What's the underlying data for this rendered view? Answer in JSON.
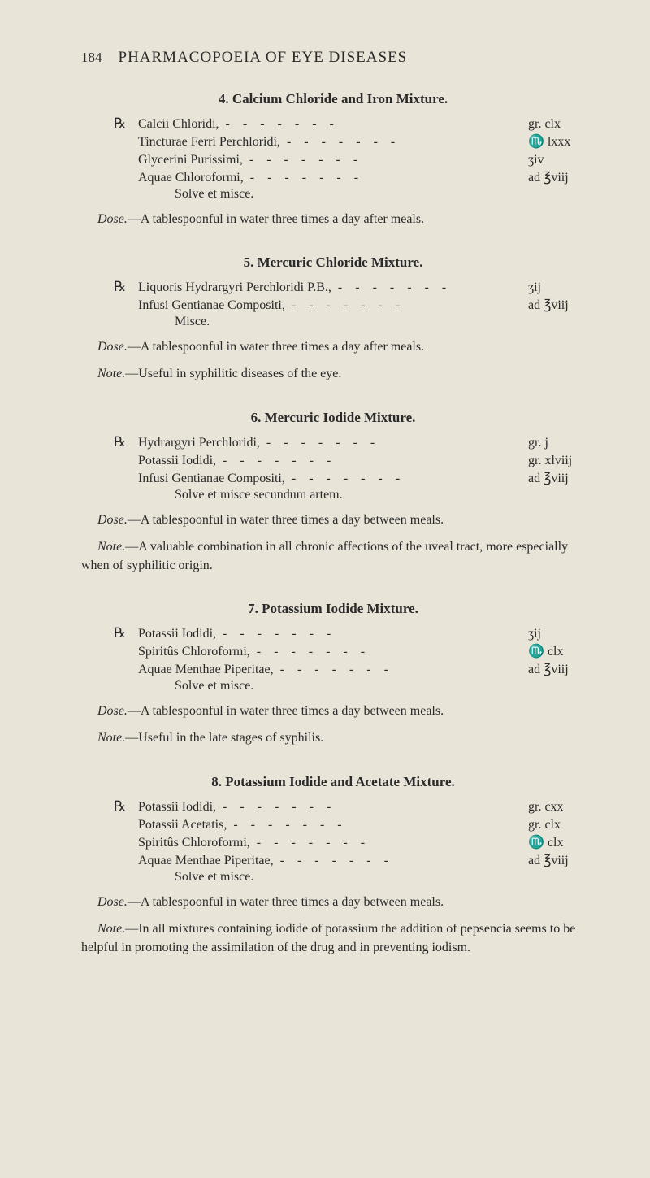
{
  "background_color": "#e8e4d8",
  "text_color": "#2a2a2a",
  "header": {
    "page_number": "184",
    "title": "PHARMACOPOEIA OF EYE DISEASES"
  },
  "sections": [
    {
      "title": "4.  Calcium Chloride and Iron Mixture.",
      "rx": "℞",
      "formulas": [
        {
          "ingredient": "Calcii Chloridi,",
          "amount": "gr. clx"
        },
        {
          "ingredient": "Tincturae Ferri Perchloridi,",
          "amount": "♏ lxxx"
        },
        {
          "ingredient": "Glycerini Purissimi,",
          "amount": "ʒiv"
        },
        {
          "ingredient": "Aquae Chloroformi,",
          "amount": "ad ℥viij"
        }
      ],
      "instruction": "Solve et misce.",
      "notes": [
        {
          "label": "Dose.",
          "text": "—A tablespoonful in water three times a day after meals."
        }
      ]
    },
    {
      "title": "5.   Mercuric Chloride Mixture.",
      "rx": "℞",
      "formulas": [
        {
          "ingredient": "Liquoris Hydrargyri Perchloridi P.B.,",
          "amount": "ʒij"
        },
        {
          "ingredient": "Infusi Gentianae Compositi,",
          "amount": "ad ℥viij"
        }
      ],
      "instruction": "Misce.",
      "notes": [
        {
          "label": "Dose.",
          "text": "—A tablespoonful in water three times a day after meals."
        },
        {
          "label": "Note.",
          "text": "—Useful in syphilitic diseases of the eye."
        }
      ]
    },
    {
      "title": "6.   Mercuric Iodide Mixture.",
      "rx": "℞",
      "formulas": [
        {
          "ingredient": "Hydrargyri Perchloridi,",
          "amount": "gr. j"
        },
        {
          "ingredient": "Potassii Iodidi,",
          "amount": "gr. xlviij"
        },
        {
          "ingredient": "Infusi Gentianae Compositi,",
          "amount": "ad ℥viij"
        }
      ],
      "instruction": "Solve et misce secundum artem.",
      "notes": [
        {
          "label": "Dose.",
          "text": "—A tablespoonful in water three times a day between meals."
        },
        {
          "label": "Note.",
          "text": "—A valuable combination in all chronic affections of the uveal tract, more especially when of syphilitic origin."
        }
      ]
    },
    {
      "title": "7.   Potassium Iodide Mixture.",
      "rx": "℞",
      "formulas": [
        {
          "ingredient": "Potassii Iodidi,",
          "amount": "ʒij"
        },
        {
          "ingredient": "Spiritûs Chloroformi,",
          "amount": "♏ clx"
        },
        {
          "ingredient": "Aquae Menthae Piperitae,",
          "amount": "ad ℥viij"
        }
      ],
      "instruction": "Solve et misce.",
      "notes": [
        {
          "label": "Dose.",
          "text": "—A tablespoonful in water three times a day between meals."
        },
        {
          "label": "Note.",
          "text": "—Useful in the late stages of syphilis."
        }
      ]
    },
    {
      "title": "8.   Potassium Iodide and Acetate Mixture.",
      "rx": "℞",
      "formulas": [
        {
          "ingredient": "Potassii Iodidi,",
          "amount": "gr. cxx"
        },
        {
          "ingredient": "Potassii Acetatis,",
          "amount": "gr. clx"
        },
        {
          "ingredient": "Spiritûs Chloroformi,",
          "amount": "♏ clx"
        },
        {
          "ingredient": "Aquae Menthae Piperitae,",
          "amount": "ad ℥viij"
        }
      ],
      "instruction": "Solve et misce.",
      "notes": [
        {
          "label": "Dose.",
          "text": "—A tablespoonful in water three times a day between meals."
        },
        {
          "label": "Note.",
          "text": "—In all mixtures containing iodide of potassium the addition of pepsencia seems to be helpful in promoting the assimilation of the drug and in preventing iodism."
        }
      ]
    }
  ]
}
